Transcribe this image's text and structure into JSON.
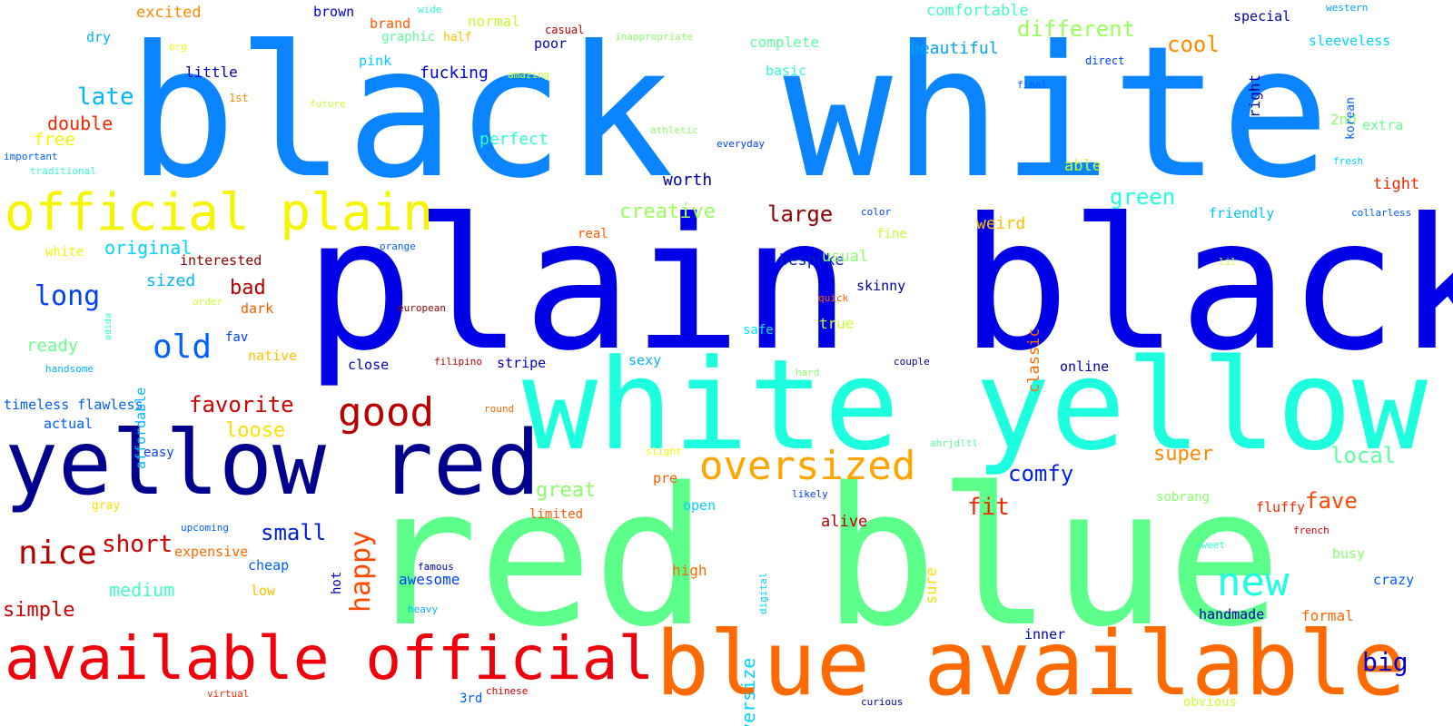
{
  "words": [
    {
      "text": "black white",
      "color": "#0a84ff"
    },
    {
      "text": "plain black",
      "color": "#0000e6"
    },
    {
      "text": "white yellow",
      "color": "#1effdf"
    },
    {
      "text": "red blue",
      "color": "#5cff8a"
    },
    {
      "text": "blue available",
      "color": "#ff6a00"
    },
    {
      "text": "available official",
      "color": "#f0000a"
    },
    {
      "text": "yellow red",
      "color": "#00008f"
    },
    {
      "text": "official plain",
      "color": "#f5f500"
    },
    {
      "text": "oversized",
      "color": "#ffa500"
    },
    {
      "text": "good",
      "color": "#b80000"
    },
    {
      "text": "new",
      "color": "#1effdf"
    },
    {
      "text": "nice",
      "color": "#b80000"
    },
    {
      "text": "old",
      "color": "#0060ff"
    },
    {
      "text": "long",
      "color": "#0040ff"
    },
    {
      "text": "short",
      "color": "#d00000"
    },
    {
      "text": "happy",
      "color": "#ff4a00"
    },
    {
      "text": "different",
      "color": "#9aff5c"
    },
    {
      "text": "cool",
      "color": "#ff8a00"
    },
    {
      "text": "late",
      "color": "#00b4ff"
    },
    {
      "text": "large",
      "color": "#900000"
    },
    {
      "text": "creative",
      "color": "#9aff5c"
    },
    {
      "text": "fit",
      "color": "#f02a00"
    },
    {
      "text": "green",
      "color": "#1effdf"
    },
    {
      "text": "local",
      "color": "#5cffa0"
    },
    {
      "text": "fave",
      "color": "#ff4a00"
    },
    {
      "text": "big",
      "color": "#0000c8"
    },
    {
      "text": "comfy",
      "color": "#0020e6"
    },
    {
      "text": "super",
      "color": "#ff8a00"
    },
    {
      "text": "small",
      "color": "#0020d0"
    },
    {
      "text": "favorite",
      "color": "#d00000"
    },
    {
      "text": "great",
      "color": "#8aff6a"
    },
    {
      "text": "medium",
      "color": "#40ffc0"
    },
    {
      "text": "simple",
      "color": "#d00000"
    },
    {
      "text": "loose",
      "color": "#ffe000"
    },
    {
      "text": "original",
      "color": "#00d4ff"
    },
    {
      "text": "perfect",
      "color": "#30ffd0"
    },
    {
      "text": "beautiful",
      "color": "#00a4ff"
    },
    {
      "text": "comfortable",
      "color": "#40ffc0"
    },
    {
      "text": "complete",
      "color": "#5cffa0"
    },
    {
      "text": "fucking",
      "color": "#0000d0"
    },
    {
      "text": "double",
      "color": "#f02a00"
    },
    {
      "text": "free",
      "color": "#f5f500"
    },
    {
      "text": "ready",
      "color": "#6aff90"
    },
    {
      "text": "bad",
      "color": "#b80000"
    },
    {
      "text": "sized",
      "color": "#00b4ff"
    },
    {
      "text": "worth",
      "color": "#0000a8"
    },
    {
      "text": "weird",
      "color": "#ffc000"
    },
    {
      "text": "bespoke",
      "color": "#0020c0"
    },
    {
      "text": "usual",
      "color": "#8aff6a"
    },
    {
      "text": "skinny",
      "color": "#0000a8"
    },
    {
      "text": "true",
      "color": "#c8ff30"
    },
    {
      "text": "able",
      "color": "#c8ff30"
    },
    {
      "text": "excited",
      "color": "#ff8a00"
    },
    {
      "text": "brown",
      "color": "#0000c8"
    },
    {
      "text": "brand",
      "color": "#ff5a00"
    },
    {
      "text": "normal",
      "color": "#c8ff30"
    },
    {
      "text": "graphic",
      "color": "#5cffa0"
    },
    {
      "text": "dry",
      "color": "#00b4ff"
    },
    {
      "text": "pink",
      "color": "#00d4ff"
    },
    {
      "text": "poor",
      "color": "#0000c8"
    },
    {
      "text": "little",
      "color": "#0000a8"
    },
    {
      "text": "special",
      "color": "#0000a8"
    },
    {
      "text": "sleeveless",
      "color": "#00d4ff"
    },
    {
      "text": "2nd",
      "color": "#8aff6a"
    },
    {
      "text": "extra",
      "color": "#6aff90"
    },
    {
      "text": "tight",
      "color": "#f02a00"
    },
    {
      "text": "friendly",
      "color": "#00c4ff"
    },
    {
      "text": "interested",
      "color": "#900000"
    },
    {
      "text": "dark",
      "color": "#ff5a00"
    },
    {
      "text": "fav",
      "color": "#0040ff"
    },
    {
      "text": "native",
      "color": "#ffc000"
    },
    {
      "text": "close",
      "color": "#0000c8"
    },
    {
      "text": "stripe",
      "color": "#0000c8"
    },
    {
      "text": "sexy",
      "color": "#00b4ff"
    },
    {
      "text": "online",
      "color": "#0000a8"
    },
    {
      "text": "timeless flawless",
      "color": "#0060ff"
    },
    {
      "text": "actual",
      "color": "#0060ff"
    },
    {
      "text": "easy",
      "color": "#0040ff"
    },
    {
      "text": "real",
      "color": "#ff5a00"
    },
    {
      "text": "fine",
      "color": "#c8ff30"
    },
    {
      "text": "safe",
      "color": "#00e6ff"
    },
    {
      "text": "expensive",
      "color": "#ff6a00"
    },
    {
      "text": "cheap",
      "color": "#0060ff"
    },
    {
      "text": "low",
      "color": "#ffc000"
    },
    {
      "text": "awesome",
      "color": "#0040ff"
    },
    {
      "text": "high",
      "color": "#ff6a00"
    },
    {
      "text": "alive",
      "color": "#b80000"
    },
    {
      "text": "open",
      "color": "#00d4ff"
    },
    {
      "text": "limited",
      "color": "#ff5a00"
    },
    {
      "text": "pre",
      "color": "#ff5a00"
    },
    {
      "text": "handmade",
      "color": "#0000a8"
    },
    {
      "text": "formal",
      "color": "#ff6a00"
    },
    {
      "text": "crazy",
      "color": "#0060ff"
    },
    {
      "text": "busy",
      "color": "#8aff6a"
    },
    {
      "text": "fluffy",
      "color": "#f02a00"
    },
    {
      "text": "sobrang",
      "color": "#8aff6a"
    },
    {
      "text": "inner",
      "color": "#0000a8"
    },
    {
      "text": "3rd",
      "color": "#0060ff"
    },
    {
      "text": "obvious",
      "color": "#c8ff30"
    },
    {
      "text": "basic",
      "color": "#30ffd0"
    },
    {
      "text": "wide",
      "color": "#30ffd0"
    },
    {
      "text": "half",
      "color": "#ffc000"
    },
    {
      "text": "casual",
      "color": "#b80000"
    },
    {
      "text": "inappropriate",
      "color": "#8aff6a"
    },
    {
      "text": "western",
      "color": "#00a4ff"
    },
    {
      "text": "org",
      "color": "#f5f500"
    },
    {
      "text": "amazing",
      "color": "#c8ff30"
    },
    {
      "text": "direct",
      "color": "#0040ff"
    },
    {
      "text": "final",
      "color": "#0060ff"
    },
    {
      "text": "1st",
      "color": "#ff8a00"
    },
    {
      "text": "future",
      "color": "#c8ff30"
    },
    {
      "text": "important",
      "color": "#0060ff"
    },
    {
      "text": "traditional",
      "color": "#30ffd0"
    },
    {
      "text": "athletic",
      "color": "#8aff6a"
    },
    {
      "text": "everyday",
      "color": "#0040ff"
    },
    {
      "text": "fresh",
      "color": "#00d4ff"
    },
    {
      "text": "color",
      "color": "#0040ff"
    },
    {
      "text": "collarless",
      "color": "#0060ff"
    },
    {
      "text": "white",
      "color": "#f5f500"
    },
    {
      "text": "orange",
      "color": "#0060ff"
    },
    {
      "text": "order",
      "color": "#c8ff30"
    },
    {
      "text": "european",
      "color": "#900000"
    },
    {
      "text": "quick",
      "color": "#ff5a00"
    },
    {
      "text": "lil",
      "color": "#c8ff30"
    },
    {
      "text": "handsome",
      "color": "#00b4ff"
    },
    {
      "text": "filipino",
      "color": "#b80000"
    },
    {
      "text": "couple",
      "color": "#0000a8"
    },
    {
      "text": "hard",
      "color": "#8aff6a"
    },
    {
      "text": "round",
      "color": "#ff6a00"
    },
    {
      "text": "slight",
      "color": "#f5f500"
    },
    {
      "text": "ahrjdltl",
      "color": "#5cffa0"
    },
    {
      "text": "gray",
      "color": "#ffe000"
    },
    {
      "text": "upcoming",
      "color": "#0060ff"
    },
    {
      "text": "likely",
      "color": "#0040ff"
    },
    {
      "text": "french",
      "color": "#d00000"
    },
    {
      "text": "sweet",
      "color": "#30ffd0"
    },
    {
      "text": "famous",
      "color": "#0000a8"
    },
    {
      "text": "heavy",
      "color": "#00b4ff"
    },
    {
      "text": "virtual",
      "color": "#f02a00"
    },
    {
      "text": "chinese",
      "color": "#d00000"
    },
    {
      "text": "curious",
      "color": "#0000a8"
    },
    {
      "text": "right",
      "color": "#0000a8"
    },
    {
      "text": "korean",
      "color": "#0060ff"
    },
    {
      "text": "classic",
      "color": "#ff6a00"
    },
    {
      "text": "affordable",
      "color": "#00b4ff"
    },
    {
      "text": "adida",
      "color": "#30ffd0"
    },
    {
      "text": "hot",
      "color": "#0000c8"
    },
    {
      "text": "sure",
      "color": "#ffe000"
    },
    {
      "text": "digital",
      "color": "#00d4ff"
    },
    {
      "text": "oversize",
      "color": "#00d4ff"
    }
  ]
}
